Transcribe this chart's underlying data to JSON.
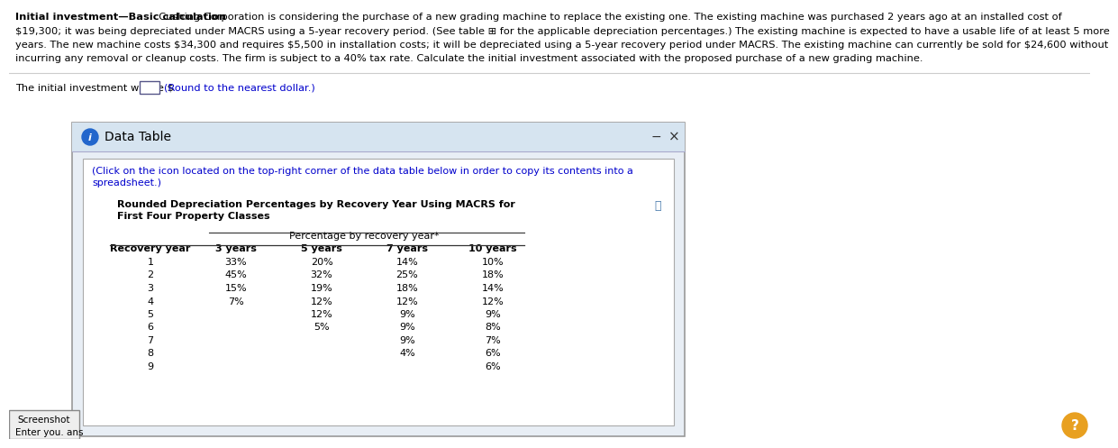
{
  "header_bold": "Initial investment—Basic calculation",
  "header_lines": [
    "  Cushing Corporation is considering the purchase of a new grading machine to replace the existing one. The existing machine was purchased 2 years ago at an installed cost of",
    "$19,300; it was being depreciated under MACRS using a 5-year recovery period. (See table ⊞ for the applicable depreciation percentages.) The existing machine is expected to have a usable life of at least 5 more",
    "years. The new machine costs $34,300 and requires $5,500 in installation costs; it will be depreciated using a 5-year recovery period under MACRS. The existing machine can currently be sold for $24,600 without",
    "incurring any removal or cleanup costs. The firm is subject to a 40% tax rate. Calculate the initial investment associated with the proposed purchase of a new grading machine."
  ],
  "answer_prefix": "The initial investment will be $",
  "answer_note": "(Round to the nearest dollar.)",
  "dialog_title": "Data Table",
  "subtitle_line1": "(Click on the icon located on the top-right corner of the data table below in order to copy its contents into a",
  "subtitle_line2": "spreadsheet.)",
  "table_title_line1": "Rounded Depreciation Percentages by Recovery Year Using MACRS for",
  "table_title_line2": "First Four Property Classes",
  "table_subtitle": "Percentage by recovery year*",
  "col_headers": [
    "Recovery year",
    "3 years",
    "5 years",
    "7 years",
    "10 years"
  ],
  "table_data": [
    [
      "1",
      "33%",
      "20%",
      "14%",
      "10%"
    ],
    [
      "2",
      "45%",
      "32%",
      "25%",
      "18%"
    ],
    [
      "3",
      "15%",
      "19%",
      "18%",
      "14%"
    ],
    [
      "4",
      "7%",
      "12%",
      "12%",
      "12%"
    ],
    [
      "5",
      "",
      "12%",
      "9%",
      "9%"
    ],
    [
      "6",
      "",
      "5%",
      "9%",
      "8%"
    ],
    [
      "7",
      "",
      "",
      "9%",
      "7%"
    ],
    [
      "8",
      "",
      "",
      "4%",
      "6%"
    ],
    [
      "9",
      "",
      "",
      "",
      "6%"
    ]
  ],
  "bg_color": "#ffffff",
  "dialog_outer_bg": "#e8eef5",
  "dialog_title_bg": "#d6e4f0",
  "dialog_inner_bg": "#ffffff",
  "inner_box_bg": "#ffffff",
  "blue_text": "#0000cc",
  "text_color": "#000000",
  "icon_color": "#2266cc",
  "screenshot_label": "Screenshot",
  "bottom_label": "Enter you. ans",
  "help_circle_color": "#e8a020",
  "sep_line_color": "#cccccc",
  "table_line_color": "#333333"
}
